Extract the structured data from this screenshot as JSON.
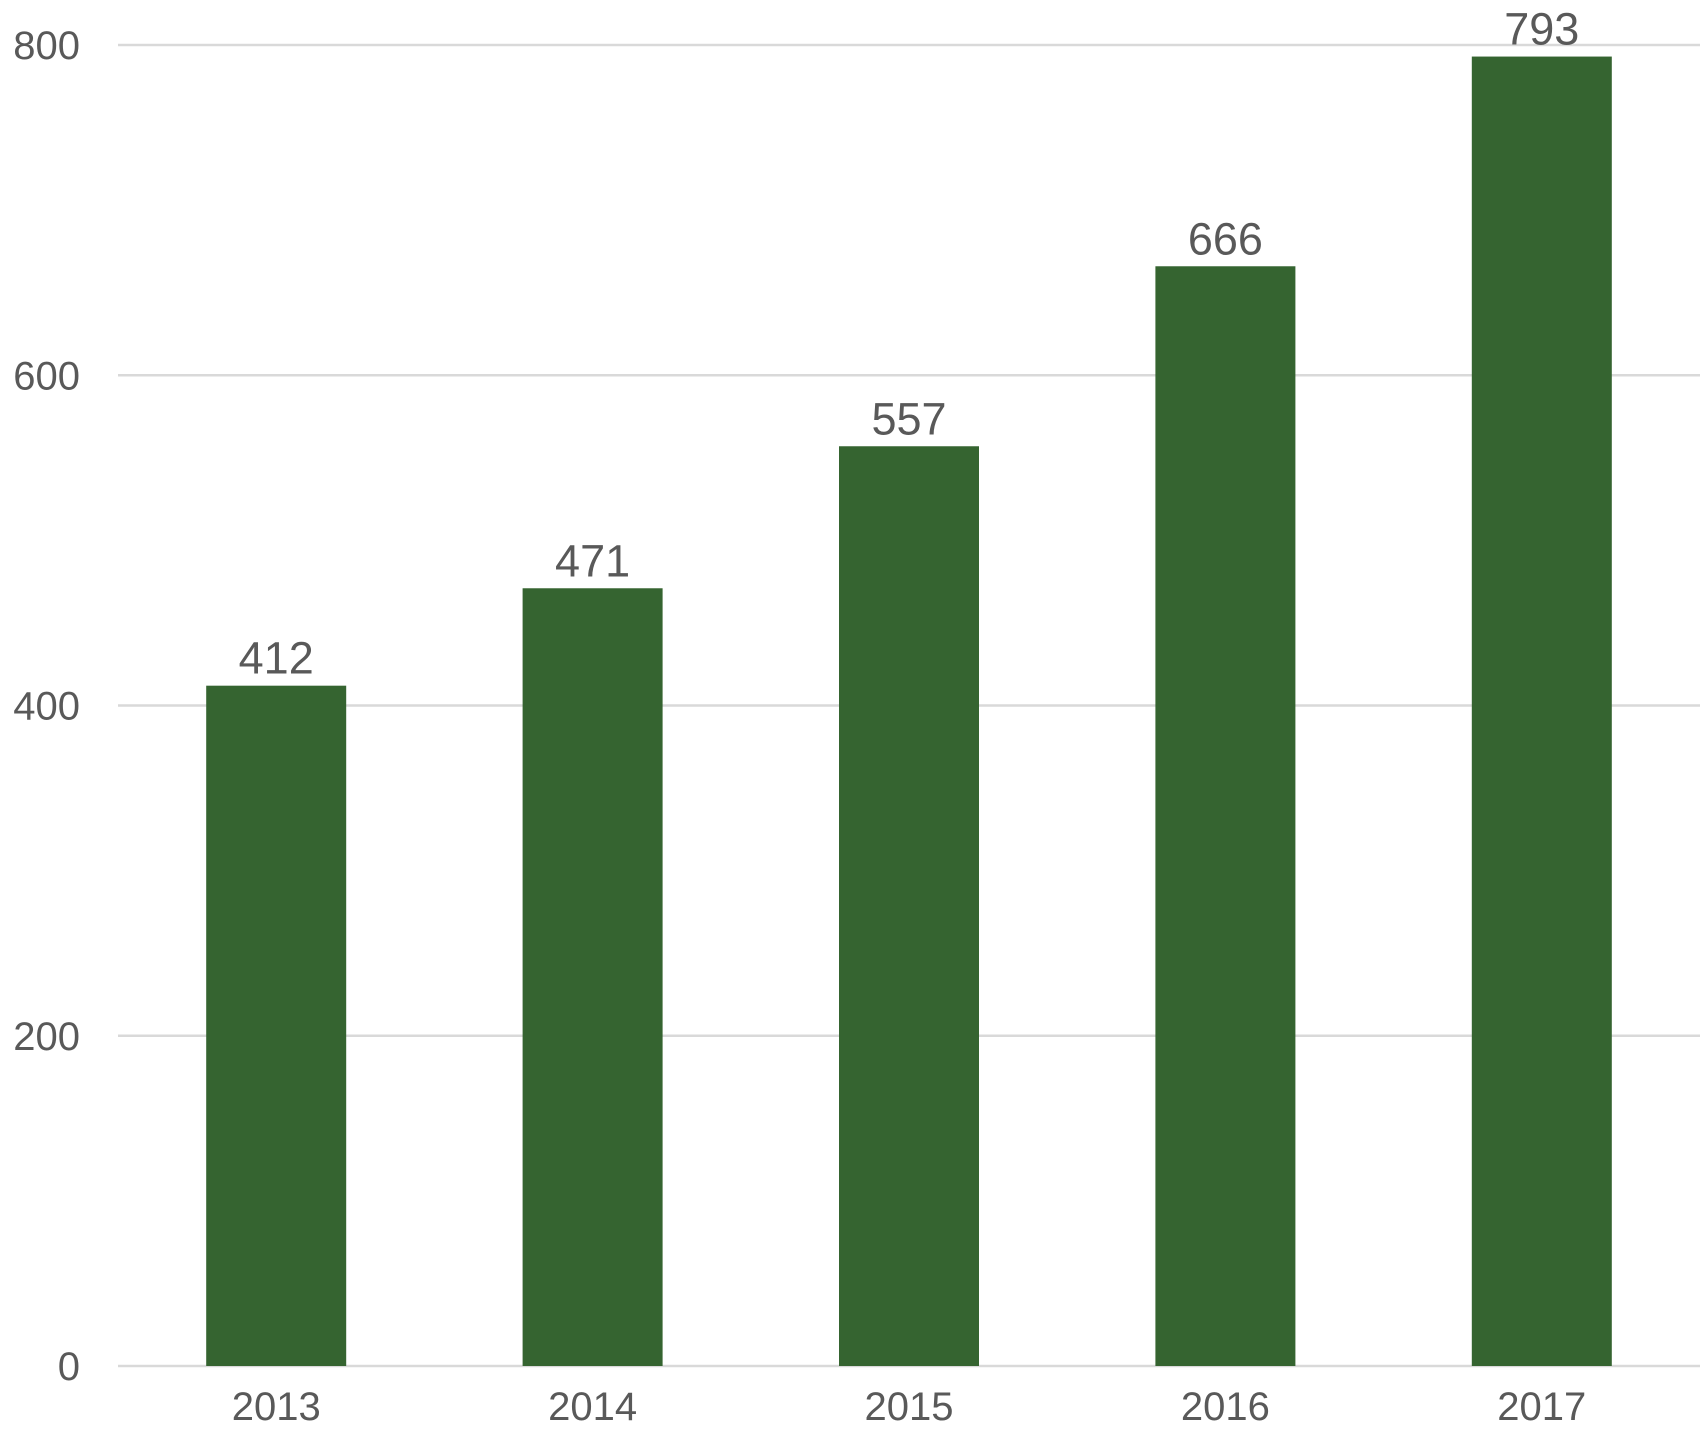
{
  "chart_data": {
    "type": "bar",
    "title": "",
    "xlabel": "",
    "ylabel": "",
    "categories": [
      "2013",
      "2014",
      "2015",
      "2016",
      "2017"
    ],
    "values": [
      412,
      471,
      557,
      666,
      793
    ],
    "data_labels": [
      "412",
      "471",
      "557",
      "666",
      "793"
    ],
    "ylim": [
      0,
      800
    ],
    "yticks": [
      0,
      200,
      400,
      600,
      800
    ],
    "ytick_labels": [
      "0",
      "200",
      "400",
      "600",
      "800"
    ],
    "grid": true,
    "legend": "none",
    "colors": {
      "bar": "#356430",
      "grid": "#d9d9d9",
      "text": "#595959"
    }
  }
}
